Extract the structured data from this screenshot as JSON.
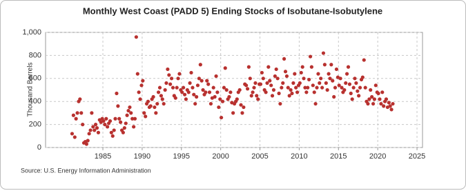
{
  "chart_data": {
    "type": "scatter",
    "title": "Monthly West Coast (PADD 5) Ending Stocks of Isobutane-Isobutylene",
    "y_label": "Thousand Barrels",
    "source": "Source: U.S. Energy Information Administration",
    "color": "#b8312f",
    "grid": true,
    "xlim": [
      1977.7,
      2025.7
    ],
    "xticks": [
      1985,
      1990,
      1995,
      2000,
      2005,
      2010,
      2015,
      2020,
      2025
    ],
    "ylim": [
      0,
      1000
    ],
    "yticks": [
      0,
      200,
      400,
      600,
      800,
      {
        "value": 1000,
        "label": "1,000"
      }
    ],
    "series": [
      {
        "name": "Ending Stocks",
        "x": [
          1981.08,
          1981.25,
          1981.42,
          1981.58,
          1981.75,
          1981.92,
          1982.08,
          1982.25,
          1982.42,
          1982.58,
          1982.75,
          1982.92,
          1983.08,
          1983.25,
          1983.42,
          1983.58,
          1983.75,
          1983.92,
          1984.08,
          1984.25,
          1984.42,
          1984.58,
          1984.75,
          1984.92,
          1985.08,
          1985.25,
          1985.42,
          1985.58,
          1985.75,
          1985.92,
          1986.08,
          1986.25,
          1986.42,
          1986.58,
          1986.75,
          1986.92,
          1987.08,
          1987.25,
          1987.42,
          1987.58,
          1987.75,
          1987.92,
          1988.08,
          1988.25,
          1988.42,
          1988.58,
          1988.75,
          1988.92,
          1989.08,
          1989.25,
          1989.42,
          1989.58,
          1989.75,
          1989.92,
          1990.08,
          1990.25,
          1990.42,
          1990.58,
          1990.75,
          1990.92,
          1991.08,
          1991.25,
          1991.42,
          1991.58,
          1991.75,
          1991.92,
          1992.08,
          1992.25,
          1992.42,
          1992.58,
          1992.75,
          1992.92,
          1993.08,
          1993.25,
          1993.42,
          1993.58,
          1993.75,
          1993.92,
          1994.08,
          1994.25,
          1994.42,
          1994.58,
          1994.75,
          1994.92,
          1995.08,
          1995.25,
          1995.42,
          1995.58,
          1995.75,
          1995.92,
          1996.08,
          1996.25,
          1996.42,
          1996.58,
          1996.75,
          1996.92,
          1997.08,
          1997.25,
          1997.42,
          1997.58,
          1997.75,
          1997.92,
          1998.08,
          1998.25,
          1998.42,
          1998.58,
          1998.75,
          1998.92,
          1999.08,
          1999.25,
          1999.42,
          1999.58,
          1999.75,
          1999.92,
          2000.08,
          2000.25,
          2000.42,
          2000.58,
          2000.75,
          2000.92,
          2001.08,
          2001.25,
          2001.42,
          2001.58,
          2001.75,
          2001.92,
          2002.08,
          2002.25,
          2002.42,
          2002.58,
          2002.75,
          2002.92,
          2003.08,
          2003.25,
          2003.42,
          2003.58,
          2003.75,
          2003.92,
          2004.08,
          2004.25,
          2004.42,
          2004.58,
          2004.75,
          2004.92,
          2005.08,
          2005.25,
          2005.42,
          2005.58,
          2005.75,
          2005.92,
          2006.08,
          2006.25,
          2006.42,
          2006.58,
          2006.75,
          2006.92,
          2007.08,
          2007.25,
          2007.42,
          2007.58,
          2007.75,
          2007.92,
          2008.08,
          2008.25,
          2008.42,
          2008.58,
          2008.75,
          2008.92,
          2009.08,
          2009.25,
          2009.42,
          2009.58,
          2009.75,
          2009.92,
          2010.08,
          2010.25,
          2010.42,
          2010.58,
          2010.75,
          2010.92,
          2011.08,
          2011.25,
          2011.42,
          2011.58,
          2011.75,
          2011.92,
          2012.08,
          2012.25,
          2012.42,
          2012.58,
          2012.75,
          2012.92,
          2013.08,
          2013.25,
          2013.42,
          2013.58,
          2013.75,
          2013.92,
          2014.08,
          2014.25,
          2014.42,
          2014.58,
          2014.75,
          2014.92,
          2015.08,
          2015.25,
          2015.42,
          2015.58,
          2015.75,
          2015.92,
          2016.08,
          2016.25,
          2016.42,
          2016.58,
          2016.75,
          2016.92,
          2017.08,
          2017.25,
          2017.42,
          2017.58,
          2017.75,
          2017.92,
          2018.08,
          2018.25,
          2018.42,
          2018.58,
          2018.75,
          2018.92,
          2019.08,
          2019.25,
          2019.42,
          2019.58,
          2019.75,
          2019.92,
          2020.08,
          2020.25,
          2020.42,
          2020.58,
          2020.75,
          2020.92,
          2021.08,
          2021.25,
          2021.42,
          2021.58,
          2021.75,
          2021.92
        ],
        "values": [
          120,
          280,
          90,
          250,
          300,
          400,
          420,
          300,
          200,
          40,
          50,
          30,
          60,
          120,
          150,
          300,
          180,
          150,
          200,
          170,
          130,
          240,
          220,
          250,
          230,
          200,
          250,
          180,
          210,
          230,
          130,
          100,
          150,
          250,
          470,
          360,
          250,
          220,
          150,
          130,
          170,
          210,
          280,
          320,
          350,
          300,
          250,
          180,
          250,
          960,
          640,
          480,
          420,
          540,
          580,
          300,
          270,
          380,
          400,
          350,
          360,
          420,
          440,
          350,
          300,
          380,
          480,
          520,
          450,
          420,
          380,
          500,
          560,
          680,
          630,
          550,
          600,
          520,
          450,
          430,
          520,
          600,
          640,
          500,
          480,
          520,
          460,
          420,
          500,
          480,
          560,
          650,
          520,
          460,
          380,
          440,
          540,
          600,
          720,
          580,
          500,
          460,
          480,
          580,
          550,
          480,
          380,
          430,
          520,
          440,
          620,
          480,
          350,
          420,
          260,
          400,
          520,
          690,
          500,
          420,
          440,
          480,
          390,
          300,
          380,
          400,
          420,
          480,
          500,
          370,
          300,
          350,
          550,
          540,
          510,
          700,
          600,
          450,
          480,
          520,
          560,
          450,
          420,
          550,
          550,
          650,
          600,
          500,
          480,
          560,
          700,
          580,
          540,
          450,
          500,
          620,
          680,
          600,
          470,
          380,
          520,
          560,
          770,
          660,
          620,
          520,
          450,
          500,
          470,
          560,
          640,
          520,
          480,
          540,
          560,
          650,
          700,
          600,
          520,
          480,
          520,
          590,
          790,
          700,
          540,
          480,
          380,
          520,
          640,
          560,
          600,
          520,
          820,
          720,
          560,
          500,
          640,
          600,
          720,
          580,
          440,
          520,
          680,
          610,
          540,
          600,
          520,
          480,
          500,
          560,
          640,
          700,
          550,
          470,
          420,
          520,
          600,
          560,
          490,
          450,
          520,
          590,
          610,
          760,
          520,
          400,
          380,
          420,
          500,
          440,
          380,
          420,
          540,
          480,
          470,
          420,
          380,
          480,
          360,
          400,
          420,
          350,
          390,
          360,
          330,
          380
        ]
      }
    ]
  }
}
